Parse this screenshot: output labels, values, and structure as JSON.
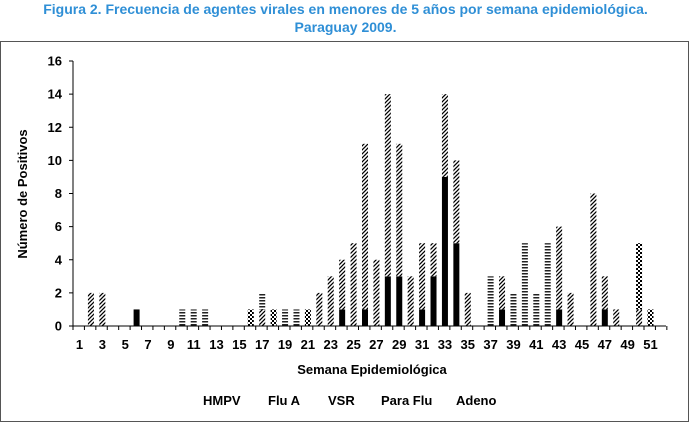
{
  "chart_data": {
    "type": "bar",
    "title": "Figura 2. Frecuencia de agentes virales en menores de 5 años por semana epidemiológica. Paraguay 2009.",
    "title_line1": "Figura 2. Frecuencia de agentes virales en menores de 5 años por semana epidemiológica.",
    "title_line2": "Paraguay 2009.",
    "xlabel": "Semana Epidemiológica",
    "ylabel": "Número de Positivos",
    "ylim": [
      0,
      16
    ],
    "yticks": [
      0,
      2,
      4,
      6,
      8,
      10,
      12,
      14,
      16
    ],
    "xticks": [
      1,
      3,
      5,
      7,
      9,
      11,
      13,
      15,
      17,
      19,
      21,
      23,
      25,
      27,
      29,
      31,
      33,
      35,
      37,
      39,
      41,
      43,
      45,
      47,
      49,
      51
    ],
    "legend_position": "bottom",
    "title_color": "#2f8fd6",
    "series": [
      {
        "name": "HMPV",
        "values": [
          0,
          0,
          0,
          0,
          0,
          1,
          0,
          0,
          0,
          0,
          0,
          0,
          0,
          0,
          0,
          0,
          0,
          0,
          0,
          0,
          0,
          0,
          0,
          1,
          0,
          1,
          0,
          3,
          3,
          0,
          1,
          3,
          9,
          5,
          0,
          0,
          0,
          1,
          0,
          0,
          0,
          0,
          1,
          0,
          0,
          0,
          1,
          0,
          0,
          0,
          0,
          0
        ]
      },
      {
        "name": "Flu A",
        "values": [
          0,
          0,
          0,
          0,
          0,
          0,
          0,
          0,
          0,
          0,
          0,
          0,
          0,
          0,
          0,
          0,
          0,
          0,
          0,
          0,
          0,
          0,
          0,
          0,
          0,
          0,
          0,
          0,
          0,
          0,
          0,
          0,
          0,
          0,
          0,
          0,
          0,
          0,
          0,
          0,
          0,
          0,
          0,
          0,
          0,
          0,
          0,
          0,
          0,
          0,
          0,
          0
        ]
      },
      {
        "name": "VSR",
        "values": [
          0,
          2,
          2,
          0,
          0,
          0,
          0,
          0,
          0,
          0,
          0,
          0,
          0,
          0,
          0,
          0,
          1,
          0,
          0,
          0,
          0,
          2,
          3,
          3,
          5,
          10,
          4,
          11,
          8,
          3,
          4,
          2,
          5,
          5,
          2,
          0,
          0,
          2,
          0,
          0,
          0,
          0,
          5,
          2,
          0,
          8,
          2,
          1,
          0,
          1,
          0,
          0
        ]
      },
      {
        "name": "Para Flu",
        "values": [
          0,
          0,
          0,
          0,
          0,
          0,
          0,
          0,
          0,
          1,
          1,
          1,
          0,
          0,
          0,
          0,
          1,
          0,
          1,
          1,
          0,
          0,
          0,
          0,
          0,
          0,
          0,
          0,
          0,
          0,
          0,
          0,
          0,
          0,
          0,
          0,
          3,
          0,
          2,
          5,
          2,
          5,
          0,
          0,
          0,
          0,
          0,
          0,
          0,
          0,
          0,
          0
        ]
      },
      {
        "name": "Adeno",
        "values": [
          0,
          0,
          0,
          0,
          0,
          0,
          0,
          0,
          0,
          0,
          0,
          0,
          0,
          0,
          0,
          1,
          0,
          1,
          0,
          0,
          1,
          0,
          0,
          0,
          0,
          0,
          0,
          0,
          0,
          0,
          0,
          0,
          0,
          0,
          0,
          0,
          0,
          0,
          0,
          0,
          0,
          0,
          0,
          0,
          0,
          0,
          0,
          0,
          0,
          4,
          1,
          0
        ]
      }
    ]
  }
}
